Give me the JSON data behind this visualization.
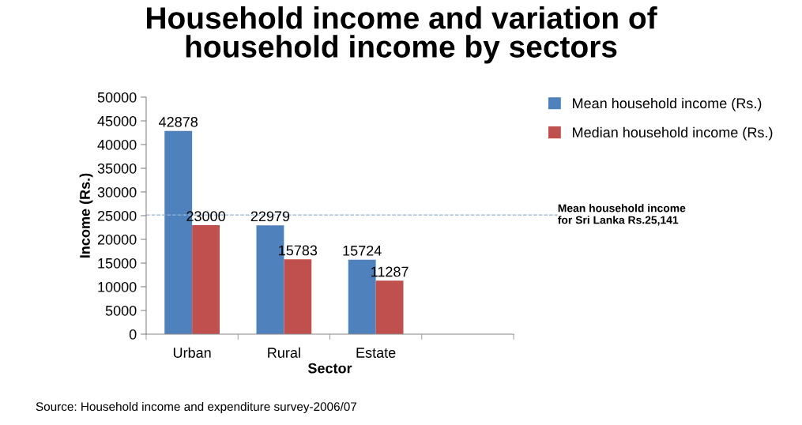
{
  "chart_data": {
    "type": "bar",
    "title": "Household income and variation of\nhousehold income by sectors",
    "xlabel": "Sector",
    "ylabel": "Income (Rs.)",
    "categories": [
      "Urban",
      "Rural",
      "Estate",
      null
    ],
    "series": [
      {
        "name": "Mean household income (Rs.)",
        "color": "#4f81bd",
        "values": [
          42878,
          22979,
          15724,
          null
        ]
      },
      {
        "name": "Median household income (Rs.)",
        "color": "#c0504d",
        "values": [
          23000,
          15783,
          11287,
          null
        ]
      }
    ],
    "ylim": [
      0,
      50000
    ],
    "yticks": [
      0,
      5000,
      10000,
      15000,
      20000,
      25000,
      30000,
      35000,
      40000,
      45000,
      50000
    ],
    "ref_lines": [
      {
        "axis": "y",
        "value": 25141,
        "label": "Mean household income\nfor Sri Lanka Rs.25,141",
        "color": "#95b3d7",
        "line_style": "dashed"
      }
    ],
    "annotations": [
      "Source: Household income and expenditure survey-2006/07"
    ],
    "data_labels": true,
    "grid": false,
    "legend": "top right"
  }
}
